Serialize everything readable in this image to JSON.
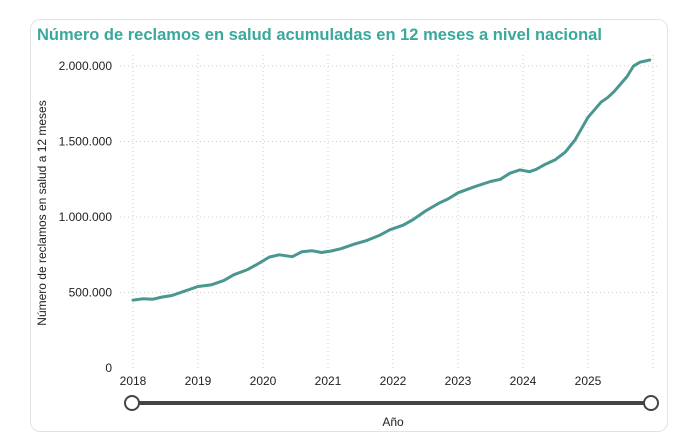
{
  "chart_data": {
    "type": "line",
    "title": "Número de reclamos en salud acumuladas en 12 meses a nivel nacional",
    "xlabel": "Año",
    "ylabel": "Número de reclamos en salud a 12 meses",
    "xlim": [
      2018,
      2026
    ],
    "ylim": [
      0,
      2000000
    ],
    "x_ticks": [
      "2018",
      "2019",
      "2020",
      "2021",
      "2022",
      "2023",
      "2024",
      "2025"
    ],
    "y_ticks": [
      "0",
      "500.000",
      "1.000.000",
      "1.500.000",
      "2.000.000"
    ],
    "y_tick_values": [
      0,
      500000,
      1000000,
      1500000,
      2000000
    ],
    "grid": true,
    "line_color": "#4a9690",
    "series": [
      {
        "x": [
          2018.0,
          2018.15,
          2018.3,
          2018.45,
          2018.6,
          2018.77,
          2019.0,
          2019.2,
          2019.4,
          2019.55,
          2019.75,
          2019.9,
          2020.1,
          2020.25,
          2020.45,
          2020.6,
          2020.75,
          2020.9,
          2021.05,
          2021.2,
          2021.4,
          2021.6,
          2021.8,
          2021.95,
          2022.15,
          2022.3,
          2022.5,
          2022.7,
          2022.85,
          2023.0,
          2023.25,
          2023.5,
          2023.65,
          2023.8,
          2023.95,
          2024.1,
          2024.2,
          2024.35,
          2024.5,
          2024.65,
          2024.8,
          2025.0,
          2025.1,
          2025.2,
          2025.3,
          2025.4,
          2025.5,
          2025.6,
          2025.7,
          2025.8,
          2025.95
        ],
        "y": [
          450000,
          458000,
          455000,
          470000,
          480000,
          505000,
          540000,
          550000,
          580000,
          617000,
          650000,
          684000,
          735000,
          750000,
          737000,
          770000,
          777000,
          765000,
          775000,
          790000,
          820000,
          845000,
          880000,
          915000,
          945000,
          980000,
          1040000,
          1090000,
          1120000,
          1160000,
          1200000,
          1235000,
          1250000,
          1290000,
          1312000,
          1300000,
          1315000,
          1350000,
          1380000,
          1430000,
          1510000,
          1660000,
          1710000,
          1760000,
          1790000,
          1830000,
          1880000,
          1930000,
          2000000,
          2025000,
          2040000
        ]
      }
    ]
  }
}
